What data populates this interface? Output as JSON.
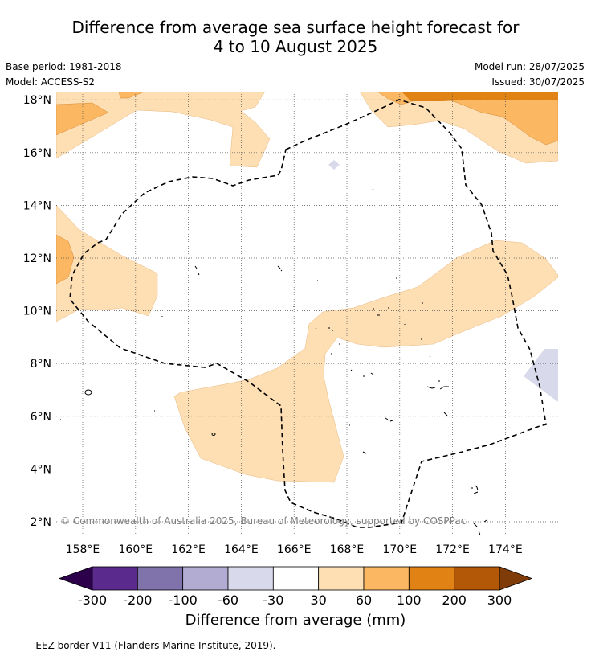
{
  "title": {
    "line1": "Difference from average sea surface height forecast for",
    "line2": "4 to 10 August 2025"
  },
  "meta": {
    "base_period": "Base period: 1981-2018",
    "model": "Model: ACCESS-S2",
    "model_run": "Model run: 28/07/2025",
    "issued": "Issued: 30/07/2025"
  },
  "map": {
    "lon_range": [
      157,
      176
    ],
    "lat_range": [
      1.5,
      18.2
    ],
    "lat_ticks": [
      "2°N",
      "4°N",
      "6°N",
      "8°N",
      "10°N",
      "12°N",
      "14°N",
      "16°N",
      "18°N"
    ],
    "lon_ticks": [
      "158°E",
      "160°E",
      "162°E",
      "164°E",
      "166°E",
      "168°E",
      "170°E",
      "172°E",
      "174°E"
    ],
    "gridlines": "dotted",
    "copyright": "© Commonwealth of Australia 2025, Bureau of Meteorology, supported by COSPPac"
  },
  "colorbar": {
    "labels": [
      "-300",
      "-200",
      "-100",
      "-60",
      "-30",
      "30",
      "60",
      "100",
      "200",
      "300"
    ],
    "colors": [
      "#2d004b",
      "#5a2a8c",
      "#8073ac",
      "#b2abd2",
      "#d8daeb",
      "#ffffff",
      "#fddfb3",
      "#fbb761",
      "#e08214",
      "#b35806",
      "#7f3b08"
    ],
    "title": "Difference from average (mm)"
  },
  "footer": "--  --  -- EEZ border V11 (Flanders Marine Institute, 2019)."
}
